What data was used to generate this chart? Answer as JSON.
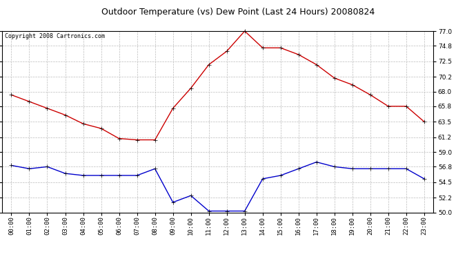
{
  "title": "Outdoor Temperature (vs) Dew Point (Last 24 Hours) 20080824",
  "copyright": "Copyright 2008 Cartronics.com",
  "hours": [
    "00:00",
    "01:00",
    "02:00",
    "03:00",
    "04:00",
    "05:00",
    "06:00",
    "07:00",
    "08:00",
    "09:00",
    "10:00",
    "11:00",
    "12:00",
    "13:00",
    "14:00",
    "15:00",
    "16:00",
    "17:00",
    "18:00",
    "19:00",
    "20:00",
    "21:00",
    "22:00",
    "23:00"
  ],
  "temp": [
    67.5,
    66.5,
    65.5,
    64.5,
    63.2,
    62.5,
    61.0,
    60.8,
    60.8,
    65.5,
    68.5,
    72.0,
    74.0,
    77.0,
    74.5,
    74.5,
    73.5,
    72.0,
    70.0,
    69.0,
    67.5,
    65.8,
    65.8,
    63.5
  ],
  "dew": [
    57.0,
    56.5,
    56.8,
    55.8,
    55.5,
    55.5,
    55.5,
    55.5,
    56.5,
    51.5,
    52.5,
    50.2,
    50.2,
    50.2,
    55.0,
    55.5,
    56.5,
    57.5,
    56.8,
    56.5,
    56.5,
    56.5,
    56.5,
    55.0
  ],
  "temp_color": "#cc0000",
  "dew_color": "#0000cc",
  "bg_color": "#ffffff",
  "plot_bg": "#ffffff",
  "grid_color": "#bbbbbb",
  "ylim": [
    50.0,
    77.0
  ],
  "yticks": [
    50.0,
    52.2,
    54.5,
    56.8,
    59.0,
    61.2,
    63.5,
    65.8,
    68.0,
    70.2,
    72.5,
    74.8,
    77.0
  ],
  "title_fontsize": 9,
  "copyright_fontsize": 6,
  "tick_fontsize": 6.5,
  "marker": "+",
  "markersize": 4,
  "linewidth": 1.0
}
